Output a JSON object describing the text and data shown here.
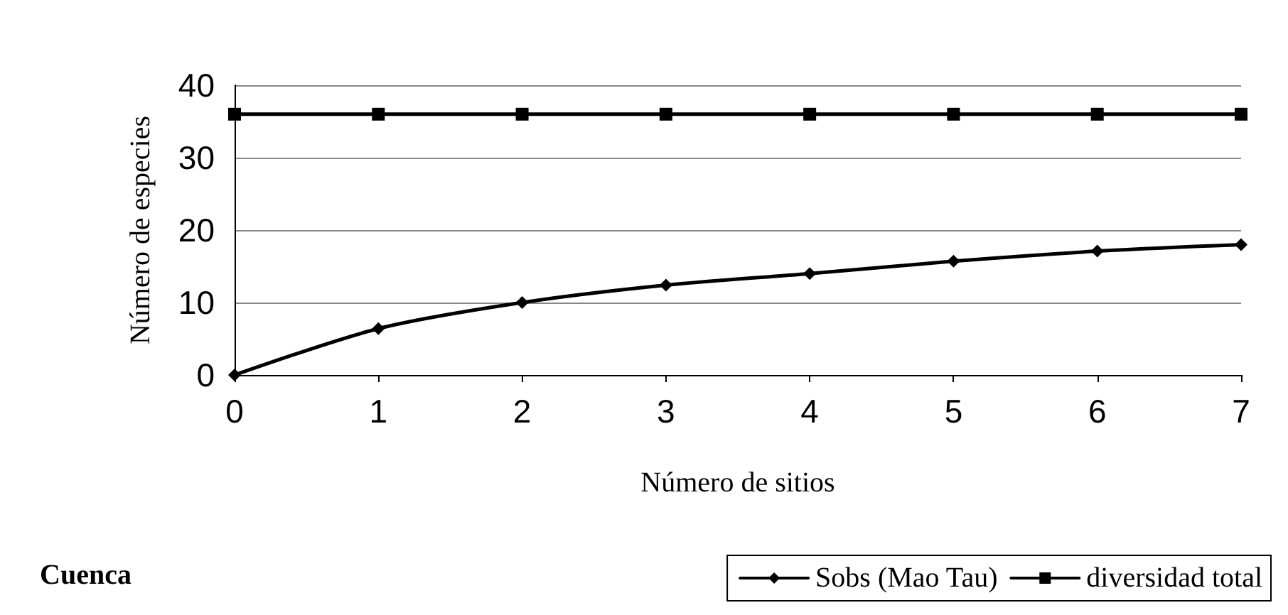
{
  "chart_data": {
    "type": "line",
    "xlabel": "Número de sitios",
    "ylabel": "Número de especies",
    "x": [
      0,
      1,
      2,
      3,
      4,
      5,
      6,
      7
    ],
    "series": [
      {
        "name": "Sobs (Mao Tau)",
        "color": "#000000",
        "marker": "diamond",
        "values": [
          0,
          6.4,
          10,
          12.4,
          14,
          15.7,
          17.1,
          18
        ]
      },
      {
        "name": "diversidad total",
        "color": "#000000",
        "marker": "square",
        "values": [
          36,
          36,
          36,
          36,
          36,
          36,
          36,
          36
        ]
      }
    ],
    "xlim": [
      0,
      7
    ],
    "xticks": [
      0,
      1,
      2,
      3,
      4,
      5,
      6,
      7
    ],
    "ylim": [
      0,
      40
    ],
    "yticks": [
      0,
      10,
      20,
      30,
      40
    ],
    "grid": "y",
    "legend": "bottom right",
    "line_style": "solid",
    "annotations": [
      "Cuenca"
    ]
  }
}
